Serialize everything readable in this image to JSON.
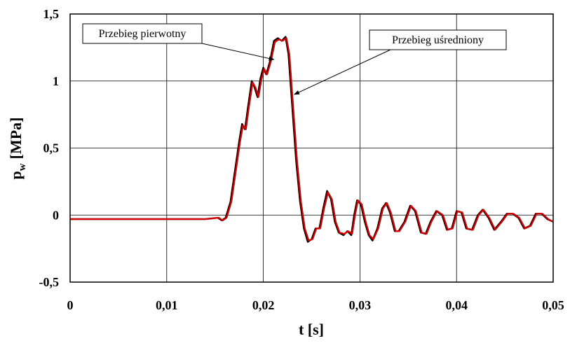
{
  "chart_data": {
    "type": "line",
    "xlabel": "t [s]",
    "ylabel_main": "p",
    "ylabel_sub": "w",
    "ylabel_unit": "[MPa]",
    "xlim": [
      0,
      0.05
    ],
    "ylim": [
      -0.5,
      1.5
    ],
    "grid": true,
    "x_ticks": [
      0,
      0.01,
      0.02,
      0.03,
      0.04,
      0.05
    ],
    "x_tick_labels": [
      "0",
      "0,01",
      "0,02",
      "0,03",
      "0,04",
      "0,05"
    ],
    "y_ticks": [
      -0.5,
      0,
      0.5,
      1,
      1.5
    ],
    "y_tick_labels": [
      "-0,5",
      "0",
      "0,5",
      "1",
      "1,5"
    ],
    "series": [
      {
        "name": "Przebieg pierwotny",
        "color": "#000000",
        "points": [
          [
            0,
            -0.03
          ],
          [
            0.005,
            -0.03
          ],
          [
            0.01,
            -0.03
          ],
          [
            0.014,
            -0.03
          ],
          [
            0.0153,
            -0.02
          ],
          [
            0.0157,
            -0.04
          ],
          [
            0.0161,
            -0.02
          ],
          [
            0.0166,
            0.1
          ],
          [
            0.017,
            0.3
          ],
          [
            0.0175,
            0.55
          ],
          [
            0.0178,
            0.68
          ],
          [
            0.0181,
            0.64
          ],
          [
            0.0184,
            0.8
          ],
          [
            0.0188,
            1.0
          ],
          [
            0.0191,
            0.95
          ],
          [
            0.0194,
            0.88
          ],
          [
            0.0197,
            1.02
          ],
          [
            0.02,
            1.1
          ],
          [
            0.0203,
            1.05
          ],
          [
            0.0207,
            1.15
          ],
          [
            0.0211,
            1.3
          ],
          [
            0.0215,
            1.32
          ],
          [
            0.0219,
            1.3
          ],
          [
            0.0223,
            1.33
          ],
          [
            0.0226,
            1.2
          ],
          [
            0.023,
            0.8
          ],
          [
            0.0234,
            0.4
          ],
          [
            0.0238,
            0.1
          ],
          [
            0.0242,
            -0.1
          ],
          [
            0.0246,
            -0.2
          ],
          [
            0.025,
            -0.18
          ],
          [
            0.0254,
            -0.1
          ],
          [
            0.0258,
            -0.1
          ],
          [
            0.0262,
            0.05
          ],
          [
            0.0266,
            0.18
          ],
          [
            0.027,
            0.12
          ],
          [
            0.0274,
            -0.05
          ],
          [
            0.0278,
            -0.13
          ],
          [
            0.0283,
            -0.15
          ],
          [
            0.0287,
            -0.12
          ],
          [
            0.0291,
            -0.15
          ],
          [
            0.0294,
            0.0
          ],
          [
            0.0297,
            0.11
          ],
          [
            0.0301,
            0.08
          ],
          [
            0.0305,
            -0.05
          ],
          [
            0.0309,
            -0.15
          ],
          [
            0.0313,
            -0.19
          ],
          [
            0.0318,
            -0.1
          ],
          [
            0.0323,
            0.05
          ],
          [
            0.0327,
            0.09
          ],
          [
            0.0331,
            0.02
          ],
          [
            0.0336,
            -0.12
          ],
          [
            0.034,
            -0.12
          ],
          [
            0.0346,
            -0.05
          ],
          [
            0.0352,
            0.07
          ],
          [
            0.0357,
            0.03
          ],
          [
            0.0363,
            -0.13
          ],
          [
            0.0368,
            -0.14
          ],
          [
            0.0373,
            -0.05
          ],
          [
            0.0379,
            0.03
          ],
          [
            0.0385,
            0.0
          ],
          [
            0.039,
            -0.11
          ],
          [
            0.0395,
            -0.1
          ],
          [
            0.04,
            0.03
          ],
          [
            0.0405,
            0.02
          ],
          [
            0.041,
            -0.1
          ],
          [
            0.0416,
            -0.11
          ],
          [
            0.0422,
            0.0
          ],
          [
            0.0427,
            0.04
          ],
          [
            0.0433,
            -0.02
          ],
          [
            0.0439,
            -0.11
          ],
          [
            0.0446,
            -0.05
          ],
          [
            0.0452,
            0.01
          ],
          [
            0.0458,
            0.01
          ],
          [
            0.0464,
            -0.02
          ],
          [
            0.047,
            -0.1
          ],
          [
            0.0476,
            -0.08
          ],
          [
            0.0482,
            0.01
          ],
          [
            0.0488,
            0.01
          ],
          [
            0.0494,
            -0.03
          ],
          [
            0.05,
            -0.05
          ]
        ]
      },
      {
        "name": "Przebieg uśredniony",
        "color": "#e00000",
        "points": [
          [
            0,
            -0.03
          ],
          [
            0.005,
            -0.03
          ],
          [
            0.01,
            -0.03
          ],
          [
            0.014,
            -0.03
          ],
          [
            0.0154,
            -0.02
          ],
          [
            0.0158,
            -0.04
          ],
          [
            0.0162,
            -0.02
          ],
          [
            0.0167,
            0.1
          ],
          [
            0.0171,
            0.3
          ],
          [
            0.0176,
            0.55
          ],
          [
            0.0179,
            0.67
          ],
          [
            0.0182,
            0.64
          ],
          [
            0.0185,
            0.8
          ],
          [
            0.0189,
            0.99
          ],
          [
            0.0192,
            0.95
          ],
          [
            0.0195,
            0.88
          ],
          [
            0.0198,
            1.01
          ],
          [
            0.0201,
            1.09
          ],
          [
            0.0204,
            1.05
          ],
          [
            0.0208,
            1.15
          ],
          [
            0.0212,
            1.29
          ],
          [
            0.0216,
            1.31
          ],
          [
            0.022,
            1.3
          ],
          [
            0.0224,
            1.32
          ],
          [
            0.0227,
            1.2
          ],
          [
            0.0231,
            0.8
          ],
          [
            0.0235,
            0.4
          ],
          [
            0.0239,
            0.1
          ],
          [
            0.0243,
            -0.1
          ],
          [
            0.0247,
            -0.19
          ],
          [
            0.0251,
            -0.18
          ],
          [
            0.0255,
            -0.1
          ],
          [
            0.0259,
            -0.1
          ],
          [
            0.0263,
            0.05
          ],
          [
            0.0267,
            0.17
          ],
          [
            0.0271,
            0.12
          ],
          [
            0.0275,
            -0.05
          ],
          [
            0.0279,
            -0.13
          ],
          [
            0.0284,
            -0.14
          ],
          [
            0.0288,
            -0.12
          ],
          [
            0.0292,
            -0.14
          ],
          [
            0.0295,
            0.0
          ],
          [
            0.0298,
            0.11
          ],
          [
            0.0302,
            0.08
          ],
          [
            0.0306,
            -0.05
          ],
          [
            0.031,
            -0.15
          ],
          [
            0.0314,
            -0.18
          ],
          [
            0.0319,
            -0.1
          ],
          [
            0.0324,
            0.05
          ],
          [
            0.0328,
            0.09
          ],
          [
            0.0332,
            0.02
          ],
          [
            0.0337,
            -0.12
          ],
          [
            0.0341,
            -0.12
          ],
          [
            0.0347,
            -0.05
          ],
          [
            0.0353,
            0.07
          ],
          [
            0.0358,
            0.03
          ],
          [
            0.0364,
            -0.13
          ],
          [
            0.0369,
            -0.14
          ],
          [
            0.0374,
            -0.05
          ],
          [
            0.038,
            0.03
          ],
          [
            0.0386,
            0.0
          ],
          [
            0.0391,
            -0.11
          ],
          [
            0.0396,
            -0.1
          ],
          [
            0.0401,
            0.03
          ],
          [
            0.0406,
            0.02
          ],
          [
            0.0411,
            -0.1
          ],
          [
            0.0417,
            -0.11
          ],
          [
            0.0423,
            0.0
          ],
          [
            0.0428,
            0.04
          ],
          [
            0.0434,
            -0.02
          ],
          [
            0.044,
            -0.11
          ],
          [
            0.0447,
            -0.05
          ],
          [
            0.0453,
            0.01
          ],
          [
            0.0459,
            0.01
          ],
          [
            0.0465,
            -0.02
          ],
          [
            0.0471,
            -0.1
          ],
          [
            0.0477,
            -0.08
          ],
          [
            0.0483,
            0.01
          ],
          [
            0.0489,
            0.01
          ],
          [
            0.0495,
            -0.03
          ],
          [
            0.05,
            -0.05
          ]
        ]
      }
    ],
    "annotations": [
      {
        "text": "Przebieg pierwotny",
        "target": [
          0.0211,
          1.16
        ]
      },
      {
        "text": "Przebieg uśredniony",
        "target": [
          0.0232,
          0.9
        ]
      }
    ]
  }
}
